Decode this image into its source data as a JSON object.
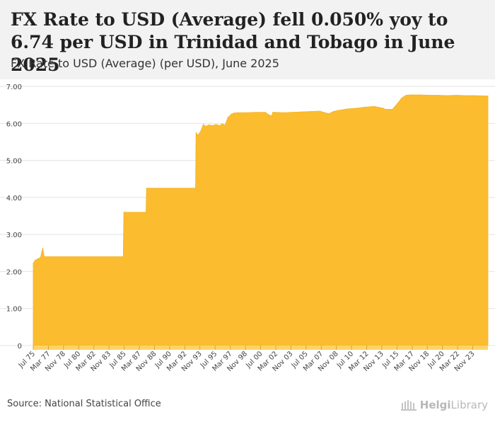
{
  "header": {
    "title": "FX Rate to USD (Average) fell 0.050% yoy to 6.74 per USD in Trinidad and Tobago in June 2025",
    "subtitle": "FX Rate to USD (Average) (per USD), June 2025"
  },
  "footer": {
    "source": "Source: National Statistical Office",
    "logo_part1": "Helgi",
    "logo_part2": "Library"
  },
  "colors": {
    "area_fill": "#fbbd2f",
    "area_band": "#ffd36a",
    "grid": "#e3e3e3",
    "header_bg": "#f2f2f2"
  },
  "chart_data": {
    "type": "area",
    "title": "FX Rate to USD (Average) (per USD), June 2025",
    "xlabel": "",
    "ylabel": "",
    "ylim": [
      0,
      7
    ],
    "xlim": [
      1975.5,
      2025.5
    ],
    "yticks": [
      {
        "value": 0,
        "label": "0"
      },
      {
        "value": 1,
        "label": "1.00"
      },
      {
        "value": 2,
        "label": "2.00"
      },
      {
        "value": 3,
        "label": "3.00"
      },
      {
        "value": 4,
        "label": "4.00"
      },
      {
        "value": 5,
        "label": "5.00"
      },
      {
        "value": 6,
        "label": "6.00"
      },
      {
        "value": 7,
        "label": "7.00"
      }
    ],
    "xticks": [
      {
        "value": 1975.5,
        "label": "Jul 75"
      },
      {
        "value": 1977.17,
        "label": "Mar 77"
      },
      {
        "value": 1978.83,
        "label": "Nov 78"
      },
      {
        "value": 1980.5,
        "label": "Jul 80"
      },
      {
        "value": 1982.17,
        "label": "Mar 82"
      },
      {
        "value": 1983.83,
        "label": "Nov 83"
      },
      {
        "value": 1985.5,
        "label": "Jul 85"
      },
      {
        "value": 1987.17,
        "label": "Mar 87"
      },
      {
        "value": 1988.83,
        "label": "Nov 88"
      },
      {
        "value": 1990.5,
        "label": "Jul 90"
      },
      {
        "value": 1992.17,
        "label": "Mar 92"
      },
      {
        "value": 1993.83,
        "label": "Nov 93"
      },
      {
        "value": 1995.5,
        "label": "Jul 95"
      },
      {
        "value": 1997.17,
        "label": "Mar 97"
      },
      {
        "value": 1998.83,
        "label": "Nov 98"
      },
      {
        "value": 2000.5,
        "label": "Jul 00"
      },
      {
        "value": 2002.17,
        "label": "Mar 02"
      },
      {
        "value": 2003.83,
        "label": "Nov 03"
      },
      {
        "value": 2005.5,
        "label": "Jul 05"
      },
      {
        "value": 2007.17,
        "label": "Mar 07"
      },
      {
        "value": 2008.83,
        "label": "Nov 08"
      },
      {
        "value": 2010.5,
        "label": "Jul 10"
      },
      {
        "value": 2012.17,
        "label": "Mar 12"
      },
      {
        "value": 2013.83,
        "label": "Nov 13"
      },
      {
        "value": 2015.5,
        "label": "Jul 15"
      },
      {
        "value": 2017.17,
        "label": "Mar 17"
      },
      {
        "value": 2018.83,
        "label": "Nov 18"
      },
      {
        "value": 2020.5,
        "label": "Jul 20"
      },
      {
        "value": 2022.17,
        "label": "Mar 22"
      },
      {
        "value": 2023.83,
        "label": "Nov 23"
      }
    ],
    "series": [
      {
        "name": "FX Rate to USD (Average)",
        "x": [
          1975.5,
          1975.7,
          1976.0,
          1976.3,
          1976.55,
          1976.7,
          1985.4,
          1985.46,
          1987.9,
          1987.96,
          1993.35,
          1993.4,
          1993.6,
          1993.9,
          1994.2,
          1994.5,
          1994.8,
          1995.2,
          1995.6,
          1996.0,
          1996.3,
          1996.6,
          1996.9,
          1997.3,
          1997.6,
          1998.0,
          1999.0,
          2000.0,
          2001.0,
          2001.5,
          2001.7,
          2001.85,
          2002.0,
          2003.0,
          2004.0,
          2005.0,
          2006.0,
          2007.0,
          2008.0,
          2008.5,
          2009.0,
          2010.0,
          2011.0,
          2012.0,
          2013.0,
          2014.0,
          2014.2,
          2015.0,
          2015.6,
          2016.0,
          2016.5,
          2017.0,
          2018.0,
          2019.0,
          2020.0,
          2021.0,
          2022.0,
          2023.0,
          2024.0,
          2025.5
        ],
        "values": [
          2.22,
          2.3,
          2.34,
          2.38,
          2.63,
          2.4,
          2.4,
          3.6,
          3.6,
          4.25,
          4.25,
          5.75,
          5.68,
          5.78,
          5.97,
          5.92,
          5.96,
          5.94,
          5.97,
          5.94,
          5.99,
          5.95,
          6.16,
          6.25,
          6.28,
          6.29,
          6.29,
          6.3,
          6.3,
          6.22,
          6.2,
          6.3,
          6.3,
          6.29,
          6.3,
          6.31,
          6.32,
          6.33,
          6.26,
          6.32,
          6.35,
          6.39,
          6.41,
          6.44,
          6.46,
          6.41,
          6.38,
          6.38,
          6.55,
          6.68,
          6.76,
          6.77,
          6.77,
          6.76,
          6.76,
          6.75,
          6.76,
          6.75,
          6.75,
          6.74
        ]
      }
    ]
  }
}
